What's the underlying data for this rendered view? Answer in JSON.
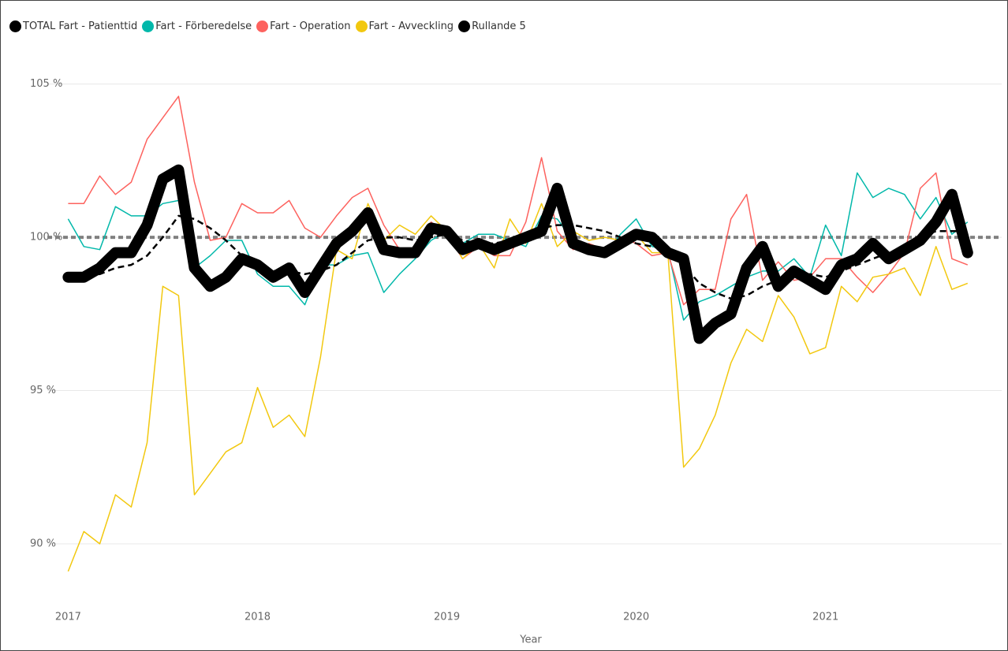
{
  "chart_data": {
    "type": "line",
    "x_label": "Year",
    "x": [
      2017,
      2017.083,
      2017.167,
      2017.25,
      2017.333,
      2017.417,
      2017.5,
      2017.583,
      2017.667,
      2017.75,
      2017.833,
      2017.917,
      2018,
      2018.083,
      2018.167,
      2018.25,
      2018.333,
      2018.417,
      2018.5,
      2018.583,
      2018.667,
      2018.75,
      2018.833,
      2018.917,
      2019,
      2019.083,
      2019.167,
      2019.25,
      2019.333,
      2019.417,
      2019.5,
      2019.583,
      2019.667,
      2019.75,
      2019.833,
      2019.917,
      2020,
      2020.083,
      2020.167,
      2020.25,
      2020.333,
      2020.417,
      2020.5,
      2020.583,
      2020.667,
      2020.75,
      2020.833,
      2020.917,
      2021,
      2021.083,
      2021.167,
      2021.25,
      2021.333,
      2021.417,
      2021.5,
      2021.583,
      2021.667,
      2021.75
    ],
    "series": [
      {
        "name": "Fart - Förberedelse",
        "color": "#01b8aa",
        "style": "thin",
        "values": [
          100.6,
          99.7,
          99.6,
          101.0,
          100.7,
          100.7,
          101.1,
          101.2,
          99.0,
          99.4,
          99.9,
          99.9,
          98.8,
          98.4,
          98.4,
          97.8,
          99.1,
          99.1,
          99.4,
          99.5,
          98.2,
          98.8,
          99.3,
          99.9,
          100.2,
          99.8,
          100.1,
          100.1,
          99.9,
          99.7,
          100.7,
          100.6,
          99.9,
          99.7,
          99.4,
          100.1,
          100.6,
          99.7,
          99.6,
          97.3,
          97.9,
          98.1,
          98.4,
          98.7,
          98.9,
          98.9,
          99.3,
          98.7,
          100.4,
          99.4,
          102.1,
          101.3,
          101.6,
          101.4,
          100.6,
          101.3,
          100.1,
          100.5
        ]
      },
      {
        "name": "Fart - Operation",
        "color": "#fd625e",
        "style": "thin",
        "values": [
          101.1,
          101.1,
          102.0,
          101.4,
          101.8,
          103.2,
          103.9,
          104.6,
          101.8,
          99.9,
          100.0,
          101.1,
          100.8,
          100.8,
          101.2,
          100.3,
          100.0,
          100.7,
          101.3,
          101.6,
          100.4,
          99.6,
          99.6,
          100.5,
          100.1,
          99.3,
          99.7,
          99.4,
          99.4,
          100.5,
          102.6,
          100.2,
          99.6,
          99.8,
          99.6,
          100.0,
          99.8,
          99.4,
          99.5,
          97.8,
          98.3,
          98.3,
          100.6,
          101.4,
          98.6,
          99.2,
          98.6,
          98.7,
          99.3,
          99.3,
          98.7,
          98.2,
          98.8,
          99.5,
          101.6,
          102.1,
          99.3,
          99.1
        ]
      },
      {
        "name": "Fart - Avveckling",
        "color": "#f2c80f",
        "style": "thin",
        "values": [
          89.1,
          90.4,
          90.0,
          91.6,
          91.2,
          93.3,
          98.4,
          98.1,
          91.6,
          92.3,
          93.0,
          93.3,
          95.1,
          93.8,
          94.2,
          93.5,
          96.1,
          99.6,
          99.3,
          101.1,
          99.9,
          100.4,
          100.1,
          100.7,
          100.2,
          99.3,
          99.8,
          99.0,
          100.6,
          99.8,
          101.1,
          99.7,
          100.2,
          99.9,
          100.0,
          99.9,
          100.1,
          99.5,
          99.5,
          92.5,
          93.1,
          94.2,
          95.9,
          97.0,
          96.6,
          98.1,
          97.4,
          96.2,
          96.4,
          98.4,
          97.9,
          98.7,
          98.8,
          99.0,
          98.1,
          99.7,
          98.3,
          98.5
        ]
      },
      {
        "name": "Rullande 5",
        "color": "#000000",
        "style": "dashed",
        "values": [
          98.7,
          98.7,
          98.8,
          99.0,
          99.1,
          99.4,
          100.0,
          100.7,
          100.6,
          100.3,
          99.9,
          99.4,
          99.1,
          98.9,
          98.9,
          98.8,
          98.9,
          99.1,
          99.5,
          99.9,
          100.0,
          100.0,
          99.9,
          100.0,
          100.1,
          99.9,
          99.8,
          99.8,
          99.9,
          100.1,
          100.3,
          100.4,
          100.4,
          100.3,
          100.2,
          100.0,
          99.8,
          99.7,
          99.6,
          99.1,
          98.5,
          98.2,
          98.0,
          98.1,
          98.4,
          98.6,
          98.7,
          98.8,
          98.7,
          98.9,
          99.1,
          99.3,
          99.5,
          99.7,
          100.0,
          100.2,
          100.2,
          100.2
        ]
      },
      {
        "name": "TOTAL Fart - Patienttid",
        "color": "#000000",
        "style": "thick",
        "values": [
          98.7,
          98.7,
          99.0,
          99.5,
          99.5,
          100.4,
          101.9,
          102.2,
          99.0,
          98.4,
          98.7,
          99.3,
          99.1,
          98.7,
          99.0,
          98.2,
          99.0,
          99.8,
          100.2,
          100.8,
          99.6,
          99.5,
          99.5,
          100.3,
          100.2,
          99.6,
          99.8,
          99.6,
          99.8,
          100.0,
          100.2,
          101.6,
          99.8,
          99.6,
          99.5,
          99.8,
          100.1,
          100.0,
          99.5,
          99.3,
          96.7,
          97.2,
          97.5,
          99.0,
          99.7,
          98.4,
          98.9,
          98.6,
          98.3,
          99.1,
          99.3,
          99.8,
          99.3,
          99.6,
          99.9,
          100.5,
          101.4,
          99.5
        ]
      }
    ],
    "legend_order": [
      4,
      0,
      1,
      2,
      3
    ],
    "reference_line": 100,
    "xlim": [
      2016.89,
      2021.93
    ],
    "xticks": [
      2017,
      2018,
      2019,
      2020,
      2021
    ],
    "ylim": [
      88.2,
      106.2
    ],
    "yticks": [
      {
        "value": 90,
        "label": "90 %"
      },
      {
        "value": 95,
        "label": "95 %"
      },
      {
        "value": 100,
        "label": "100 %"
      },
      {
        "value": 105,
        "label": "105 %"
      }
    ],
    "grid": true,
    "legend": "top-left"
  }
}
